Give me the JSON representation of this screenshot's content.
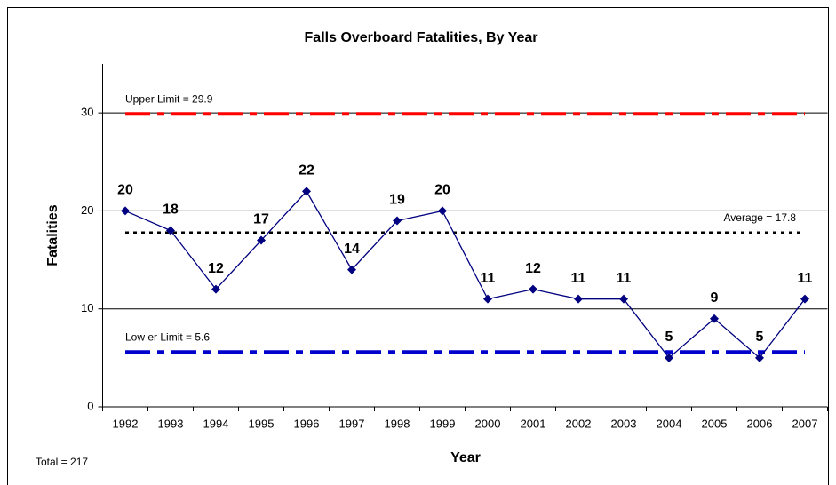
{
  "chart_data": {
    "type": "line",
    "title": "Falls Overboard Fatalities, By Year",
    "x_label": "Year",
    "y_label": "Fatalities",
    "categories": [
      "1992",
      "1993",
      "1994",
      "1995",
      "1996",
      "1997",
      "1998",
      "1999",
      "2000",
      "2001",
      "2002",
      "2003",
      "2004",
      "2005",
      "2006",
      "2007"
    ],
    "series": [
      {
        "color": "#000080",
        "values": [
          20,
          18,
          12,
          17,
          22,
          14,
          19,
          20,
          11,
          12,
          11,
          11,
          5,
          9,
          5,
          11
        ]
      }
    ],
    "ylim": [
      0,
      35
    ],
    "yticks": [
      0,
      10,
      20,
      30
    ],
    "grid": true,
    "reference_lines": [
      {
        "label": "Upper Limit = 29.9",
        "value": 29.9,
        "color": "#ff0000",
        "style": "dash-dot"
      },
      {
        "label": "Average = 17.8",
        "value": 17.8,
        "color": "#000000",
        "style": "dotted"
      },
      {
        "label": "Low er Limit = 5.6",
        "value": 5.6,
        "color": "#0000cc",
        "style": "dash-dot"
      }
    ],
    "annotation": "Total = 217"
  }
}
